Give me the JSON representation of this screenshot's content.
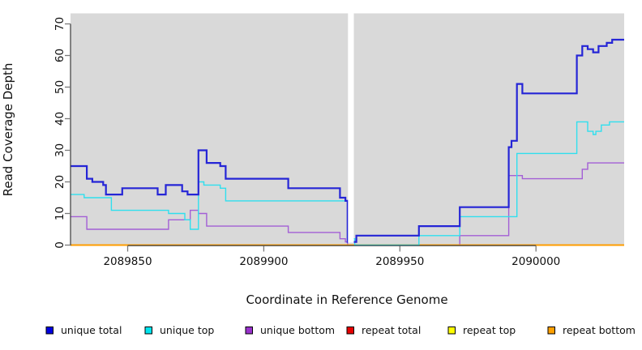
{
  "chart_data": {
    "type": "line",
    "subtype": "step-coverage",
    "title": "",
    "xlabel": "Coordinate in Reference Genome",
    "ylabel": "Read Coverage Depth",
    "x_domain": [
      2089829,
      2090032.4
    ],
    "y_domain": [
      0,
      70
    ],
    "x_ticks": [
      2089850,
      2089900,
      2089950,
      2090000
    ],
    "y_ticks": [
      0,
      10,
      20,
      30,
      40,
      50,
      60,
      70
    ],
    "panel_bg": "#d9d9d9",
    "gap_band": {
      "x_start": 2089930.95,
      "x_end": 2089933.1,
      "note": "white no-data band"
    },
    "grid": false,
    "legend_position": "bottom",
    "series": [
      {
        "name": "repeat total",
        "color": "#e30000",
        "width": 1.4,
        "points": [
          [
            2089829,
            0
          ]
        ]
      },
      {
        "name": "repeat top",
        "color": "#ffff00",
        "width": 1.4,
        "points": [
          [
            2089829,
            0
          ]
        ]
      },
      {
        "name": "unique bottom",
        "color": "#a35fd6",
        "width": 1.4,
        "points": [
          [
            2089829,
            9
          ],
          [
            2089835,
            5
          ],
          [
            2089865,
            8
          ],
          [
            2089873,
            11
          ],
          [
            2089876,
            10
          ],
          [
            2089879,
            6
          ],
          [
            2089909,
            4
          ],
          [
            2089928,
            2
          ],
          [
            2089930,
            1
          ],
          [
            2089930.8,
            0
          ],
          [
            2089972,
            3
          ],
          [
            2089990,
            22
          ],
          [
            2089995,
            21
          ],
          [
            2090017,
            24
          ],
          [
            2090019,
            26
          ]
        ]
      },
      {
        "name": "repeat bottom",
        "color": "#ff9d00",
        "width": 2,
        "points": [
          [
            2089829,
            0
          ]
        ]
      },
      {
        "name": "unique top",
        "color": "#2fdfee",
        "width": 1.4,
        "points": [
          [
            2089829,
            16
          ],
          [
            2089834,
            15
          ],
          [
            2089844,
            11
          ],
          [
            2089865,
            10
          ],
          [
            2089871,
            8
          ],
          [
            2089873,
            5
          ],
          [
            2089876,
            20
          ],
          [
            2089878,
            19
          ],
          [
            2089884,
            18
          ],
          [
            2089886,
            14
          ],
          [
            2089930.8,
            2
          ],
          [
            2089933.4,
            0
          ],
          [
            2089957,
            3
          ],
          [
            2089972,
            9
          ],
          [
            2089993,
            29
          ],
          [
            2090015,
            39
          ],
          [
            2090019,
            36
          ],
          [
            2090021,
            35
          ],
          [
            2090022,
            36
          ],
          [
            2090024,
            38
          ],
          [
            2090027,
            39
          ]
        ]
      },
      {
        "name": "unique total",
        "color": "#2525d6",
        "width": 2.2,
        "points": [
          [
            2089829,
            25
          ],
          [
            2089835,
            21
          ],
          [
            2089837,
            20
          ],
          [
            2089841,
            19
          ],
          [
            2089842,
            16
          ],
          [
            2089848,
            18
          ],
          [
            2089861,
            16
          ],
          [
            2089864,
            19
          ],
          [
            2089870,
            17
          ],
          [
            2089872,
            16
          ],
          [
            2089876,
            30
          ],
          [
            2089879,
            26
          ],
          [
            2089884,
            25
          ],
          [
            2089886,
            21
          ],
          [
            2089909,
            18
          ],
          [
            2089928,
            15
          ],
          [
            2089930,
            14
          ],
          [
            2089930.8,
            1
          ],
          [
            2089934,
            3
          ],
          [
            2089957,
            6
          ],
          [
            2089972,
            12
          ],
          [
            2089990,
            31
          ],
          [
            2089991,
            33
          ],
          [
            2089993,
            51
          ],
          [
            2089995,
            48
          ],
          [
            2090015,
            60
          ],
          [
            2090017,
            63
          ],
          [
            2090019,
            62
          ],
          [
            2090021,
            61
          ],
          [
            2090023,
            63
          ],
          [
            2090026,
            64
          ],
          [
            2090028,
            65
          ]
        ]
      }
    ]
  },
  "legend": {
    "items": [
      {
        "label": "unique total",
        "color": "#0000e0"
      },
      {
        "label": "unique top",
        "color": "#00e5ee"
      },
      {
        "label": "unique bottom",
        "color": "#9932cc"
      },
      {
        "label": "repeat total",
        "color": "#e60000"
      },
      {
        "label": "repeat top",
        "color": "#ffff00"
      },
      {
        "label": "repeat bottom",
        "color": "#ffa000"
      }
    ]
  }
}
